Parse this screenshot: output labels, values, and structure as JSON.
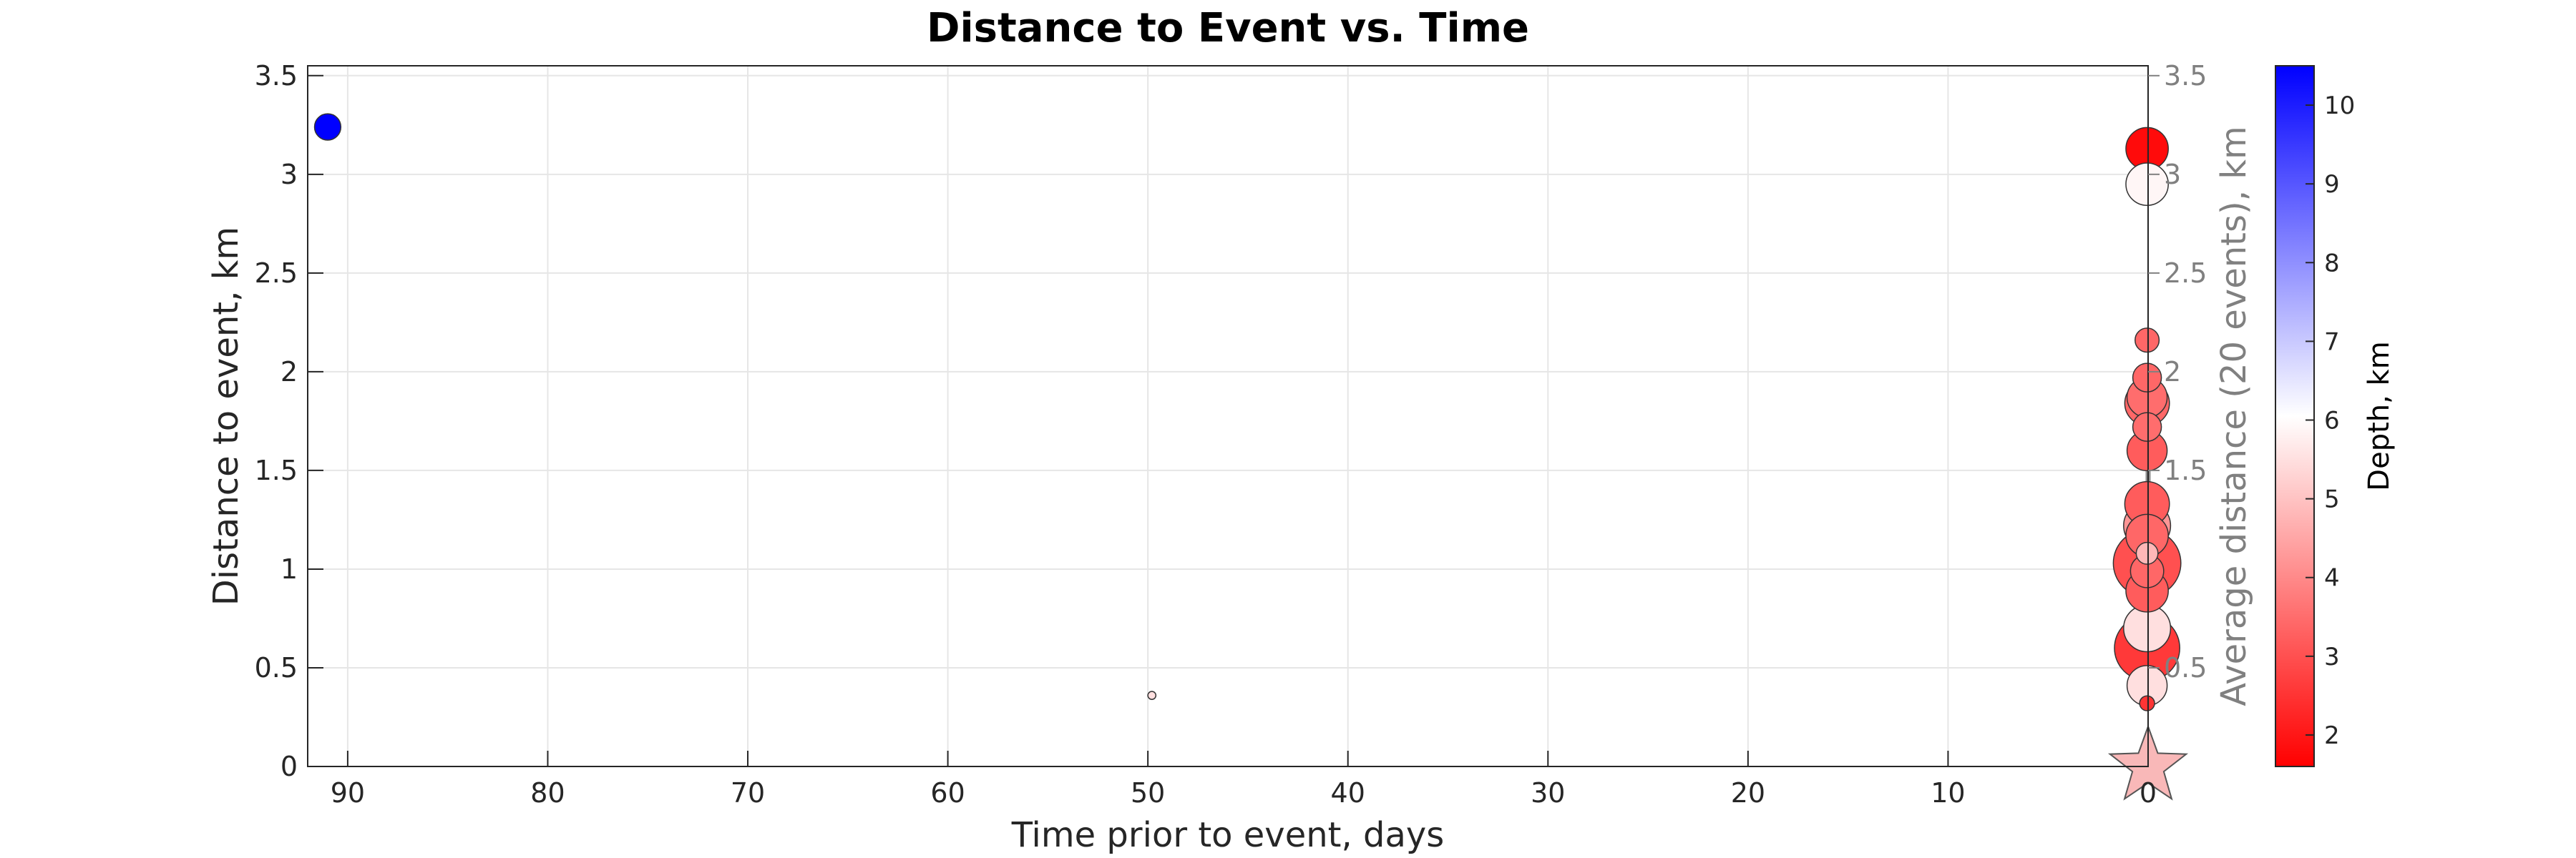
{
  "chart_data": {
    "type": "scatter",
    "title": "Distance to Event vs. Time",
    "xlabel": "Time prior to event, days",
    "ylabel": "Distance to event, km",
    "ylabel_right": "Average distance (20 events), km",
    "colorbar_label": "Depth, km",
    "xlim": [
      92,
      0
    ],
    "ylim": [
      0,
      3.55
    ],
    "x_ticks": [
      90,
      80,
      70,
      60,
      50,
      40,
      30,
      20,
      10,
      0
    ],
    "y_ticks": [
      0,
      0.5,
      1,
      1.5,
      2,
      2.5,
      3,
      3.5
    ],
    "y_tick_labels": [
      "0",
      "0.5",
      "1",
      "1.5",
      "2",
      "2.5",
      "3",
      "3.5"
    ],
    "y_right_ticks": [
      0.5,
      1.5,
      2,
      2.5,
      3,
      3.5
    ],
    "y_right_tick_labels": [
      "0.5",
      "1.5",
      "2",
      "2.5",
      "3",
      "3.5"
    ],
    "colorbar_range": [
      1.6,
      10.5
    ],
    "colorbar_ticks": [
      2,
      3,
      4,
      5,
      6,
      7,
      8,
      9,
      10
    ],
    "colorbar_colors": [
      "#ff0000",
      "#ffffff",
      "#0000ff"
    ],
    "grid": true,
    "average_line": {
      "x": [
        0,
        0,
        0,
        0,
        0,
        0
      ],
      "y": [
        0.9,
        1.0,
        1.3,
        1.6,
        1.9,
        2.0
      ]
    },
    "points": [
      {
        "x": 91.0,
        "y": 3.24,
        "depth": 10.5,
        "mag": 0.9
      },
      {
        "x": 49.8,
        "y": 0.36,
        "depth": 5.5,
        "mag": 0.1
      },
      {
        "x": 0.05,
        "y": 3.13,
        "depth": 1.8,
        "mag": 1.6
      },
      {
        "x": 0.05,
        "y": 2.95,
        "depth": 5.9,
        "mag": 1.6
      },
      {
        "x": 0.05,
        "y": 2.16,
        "depth": 3.4,
        "mag": 0.8
      },
      {
        "x": 0.05,
        "y": 1.97,
        "depth": 3.4,
        "mag": 1.0
      },
      {
        "x": 0.05,
        "y": 1.87,
        "depth": 3.5,
        "mag": 1.5
      },
      {
        "x": 0.05,
        "y": 1.84,
        "depth": 3.4,
        "mag": 1.7
      },
      {
        "x": 0.05,
        "y": 1.72,
        "depth": 3.5,
        "mag": 1.0
      },
      {
        "x": 0.05,
        "y": 1.6,
        "depth": 3.2,
        "mag": 1.5
      },
      {
        "x": 0.05,
        "y": 1.33,
        "depth": 3.2,
        "mag": 1.7
      },
      {
        "x": 0.05,
        "y": 1.22,
        "depth": 4.2,
        "mag": 1.8
      },
      {
        "x": 0.05,
        "y": 1.17,
        "depth": 3.4,
        "mag": 1.6
      },
      {
        "x": 0.05,
        "y": 1.08,
        "depth": 4.8,
        "mag": 0.7
      },
      {
        "x": 0.05,
        "y": 1.03,
        "depth": 3.0,
        "mag": 2.7
      },
      {
        "x": 0.05,
        "y": 0.99,
        "depth": 3.4,
        "mag": 1.2
      },
      {
        "x": 0.05,
        "y": 0.89,
        "depth": 3.2,
        "mag": 1.6
      },
      {
        "x": 0.05,
        "y": 0.7,
        "depth": 5.5,
        "mag": 1.8
      },
      {
        "x": 0.05,
        "y": 0.6,
        "depth": 2.6,
        "mag": 2.6
      },
      {
        "x": 0.05,
        "y": 0.41,
        "depth": 5.5,
        "mag": 1.5
      },
      {
        "x": 0.05,
        "y": 0.32,
        "depth": 2.5,
        "mag": 0.4
      }
    ],
    "mainshock": {
      "x": 0,
      "y": 0,
      "depth": 5.2,
      "color": "#f9b8b8"
    }
  }
}
